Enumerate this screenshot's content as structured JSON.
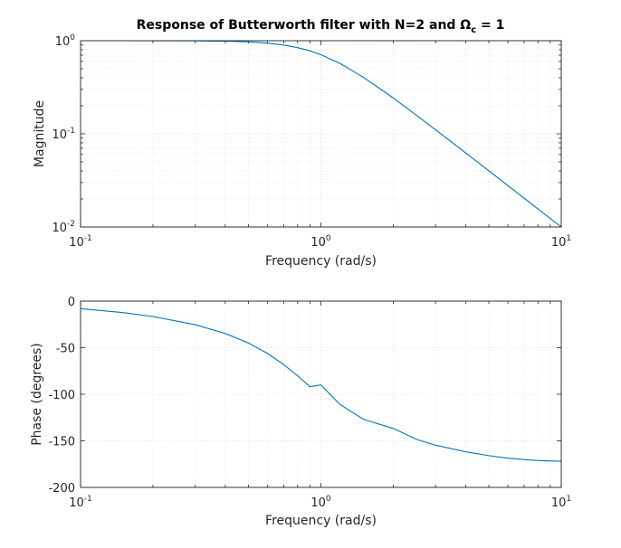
{
  "chart_data": [
    {
      "type": "line",
      "title": "Response of Butterworth filter with N=2 and Ω",
      "title_subscript": "c",
      "title_suffix": " = 1",
      "xlabel": "Frequency (rad/s)",
      "ylabel": "Magnitude",
      "xscale": "log",
      "yscale": "log",
      "xlim": [
        0.1,
        10
      ],
      "ylim": [
        0.01,
        1
      ],
      "xticks": [
        {
          "base": "10",
          "exp": "-1",
          "value": 0.1
        },
        {
          "base": "10",
          "exp": "0",
          "value": 1
        },
        {
          "base": "10",
          "exp": "1",
          "value": 10
        }
      ],
      "yticks": [
        {
          "base": "10",
          "exp": "-2",
          "value": 0.01
        },
        {
          "base": "10",
          "exp": "-1",
          "value": 0.1
        },
        {
          "base": "10",
          "exp": "0",
          "value": 1
        }
      ],
      "grid": true,
      "series": [
        {
          "color": "#0072bd",
          "x": [
            0.1,
            0.15,
            0.2,
            0.3,
            0.4,
            0.5,
            0.6,
            0.7,
            0.8,
            0.9,
            1.0,
            1.2,
            1.5,
            2.0,
            2.5,
            3.0,
            4.0,
            5.0,
            6.0,
            7.0,
            8.0,
            10.0
          ],
          "y": [
            1.0,
            1.0,
            0.9992,
            0.996,
            0.9874,
            0.9701,
            0.9408,
            0.8978,
            0.8423,
            0.7791,
            0.7071,
            0.5704,
            0.4061,
            0.2425,
            0.158,
            0.1104,
            0.0624,
            0.04,
            0.0278,
            0.0204,
            0.0156,
            0.01
          ]
        }
      ]
    },
    {
      "type": "line",
      "xlabel": "Frequency (rad/s)",
      "ylabel": "Phase (degrees)",
      "xscale": "log",
      "yscale": "linear",
      "xlim": [
        0.1,
        10
      ],
      "ylim": [
        -200,
        0
      ],
      "xticks": [
        {
          "base": "10",
          "exp": "-1",
          "value": 0.1
        },
        {
          "base": "10",
          "exp": "0",
          "value": 1
        },
        {
          "base": "10",
          "exp": "1",
          "value": 10
        }
      ],
      "yticks": [
        {
          "label": "0",
          "value": 0
        },
        {
          "label": "-50",
          "value": -50
        },
        {
          "label": "-100",
          "value": -100
        },
        {
          "label": "-150",
          "value": -150
        },
        {
          "label": "-200",
          "value": -200
        }
      ],
      "grid": true,
      "series": [
        {
          "color": "#0072bd",
          "x": [
            0.1,
            0.15,
            0.2,
            0.3,
            0.4,
            0.5,
            0.6,
            0.7,
            0.8,
            0.9,
            1.0,
            1.2,
            1.5,
            2.0,
            2.5,
            3.0,
            4.0,
            5.0,
            6.0,
            7.0,
            8.0,
            10.0
          ],
          "y": [
            -8.1,
            -12.3,
            -16.5,
            -25.3,
            -34.7,
            -45.0,
            -56.2,
            -68.1,
            -80.2,
            -91.8,
            -90.0,
            -110.9,
            -126.8,
            -136.7,
            -148.4,
            -154.7,
            -161.7,
            -165.9,
            -168.6,
            -170.1,
            -171.2,
            -171.9
          ]
        }
      ]
    }
  ]
}
